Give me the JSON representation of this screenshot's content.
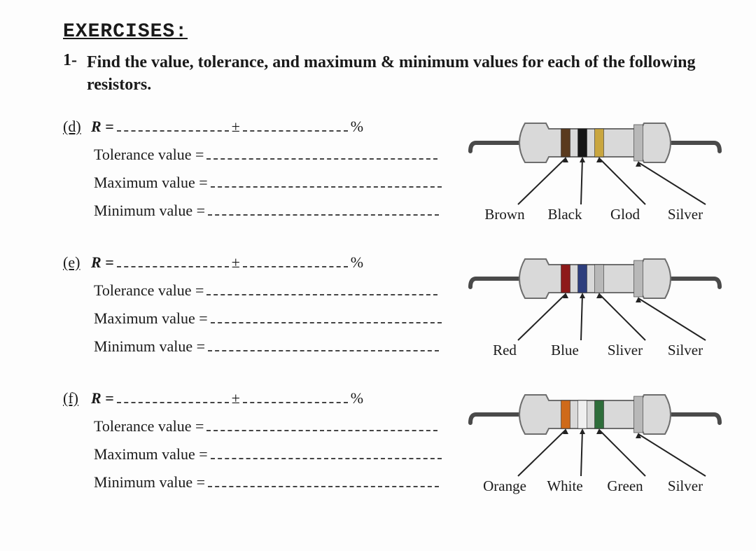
{
  "section_title": "EXERCISES:",
  "prompt_number": "1-",
  "prompt_text": "Find the value, tolerance, and maximum & minimum values for each of the following resistors.",
  "labels": {
    "R": "R =",
    "pm": "±",
    "pct": "%",
    "tol": "Tolerance value =",
    "max": "Maximum value =",
    "min": "Minimum value ="
  },
  "exercises": [
    {
      "tag": "(d)",
      "bands": [
        "Brown",
        "Black",
        "Glod",
        "Silver"
      ],
      "band_colors": [
        "#5a3a1e",
        "#161616",
        "#c9a63f",
        "#b8b8b8"
      ]
    },
    {
      "tag": "(e)",
      "bands": [
        "Red",
        "Blue",
        "Sliver",
        "Silver"
      ],
      "band_colors": [
        "#8e1a1a",
        "#2d3e7d",
        "#b8b8b8",
        "#b8b8b8"
      ]
    },
    {
      "tag": "(f)",
      "bands": [
        "Orange",
        "White",
        "Green",
        "Silver"
      ],
      "band_colors": [
        "#cf6a1a",
        "#efefef",
        "#2e6d3a",
        "#b8b8b8"
      ]
    }
  ],
  "resistor_style": {
    "body_fill": "#d9d9d9",
    "body_stroke": "#6e6e6e",
    "lead_color": "#4a4a4a",
    "pointer_color": "#222222"
  }
}
